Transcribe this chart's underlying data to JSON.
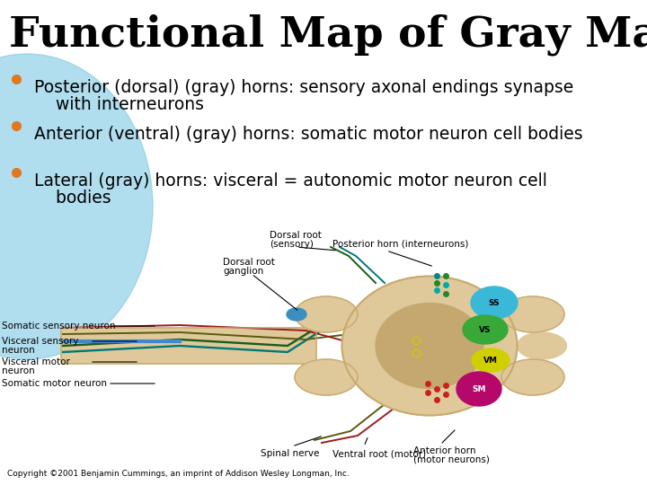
{
  "title": "Functional Map of Gray Matter",
  "title_fontsize": 34,
  "title_color": "#000000",
  "background_color": "#ffffff",
  "bullet_color": "#e07820",
  "bullet_text_color": "#000000",
  "bullet_fontsize": 13.5,
  "bullets": [
    "Posterior (dorsal) (gray) horns: sensory axonal endings synapse\n    with interneurons",
    "Anterior (ventral) (gray) horns: somatic motor neuron cell bodies",
    "Lateral (gray) horns: visceral = autonomic motor neuron cell\n    bodies"
  ],
  "blue_shape_color": "#7ec8e3",
  "blue_shape_alpha": 0.6,
  "copyright": "Copyright ©2001 Benjamin Cummings, an imprint of Addison Wesley Longman, Inc."
}
